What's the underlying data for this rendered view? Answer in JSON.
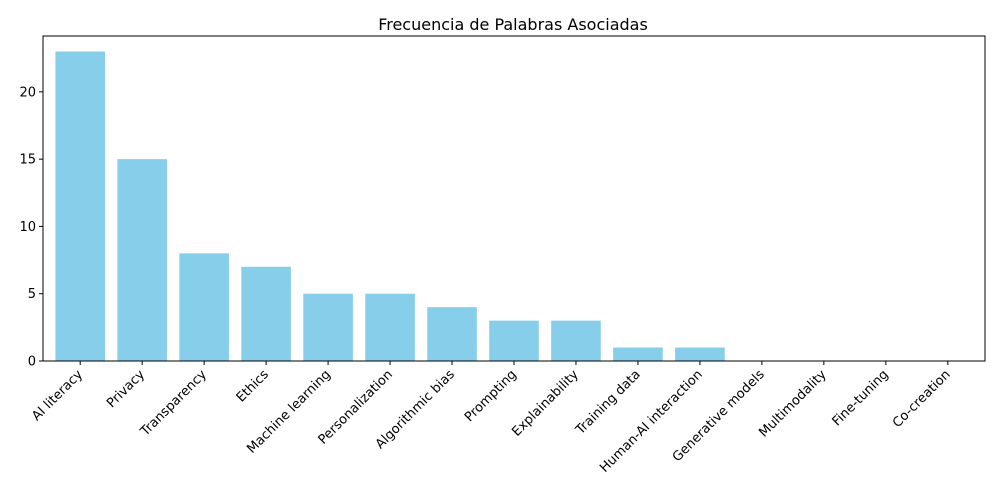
{
  "chart_data": {
    "type": "bar",
    "title": "Frecuencia de Palabras Asociadas",
    "xlabel": "",
    "ylabel": "",
    "categories": [
      "AI literacy",
      "Privacy",
      "Transparency",
      "Ethics",
      "Machine learning",
      "Personalization",
      "Algorithmic bias",
      "Prompting",
      "Explainability",
      "Training data",
      "Human-AI interaction",
      "Generative models",
      "Multimodality",
      "Fine-tuning",
      "Co-creation"
    ],
    "values": [
      23,
      15,
      8,
      7,
      5,
      5,
      4,
      3,
      3,
      1,
      1,
      0,
      0,
      0,
      0
    ],
    "ylim": [
      0,
      24.15
    ],
    "yticks": [
      0,
      5,
      10,
      15,
      20
    ],
    "grid": false,
    "bar_color": "#87CEEB"
  }
}
